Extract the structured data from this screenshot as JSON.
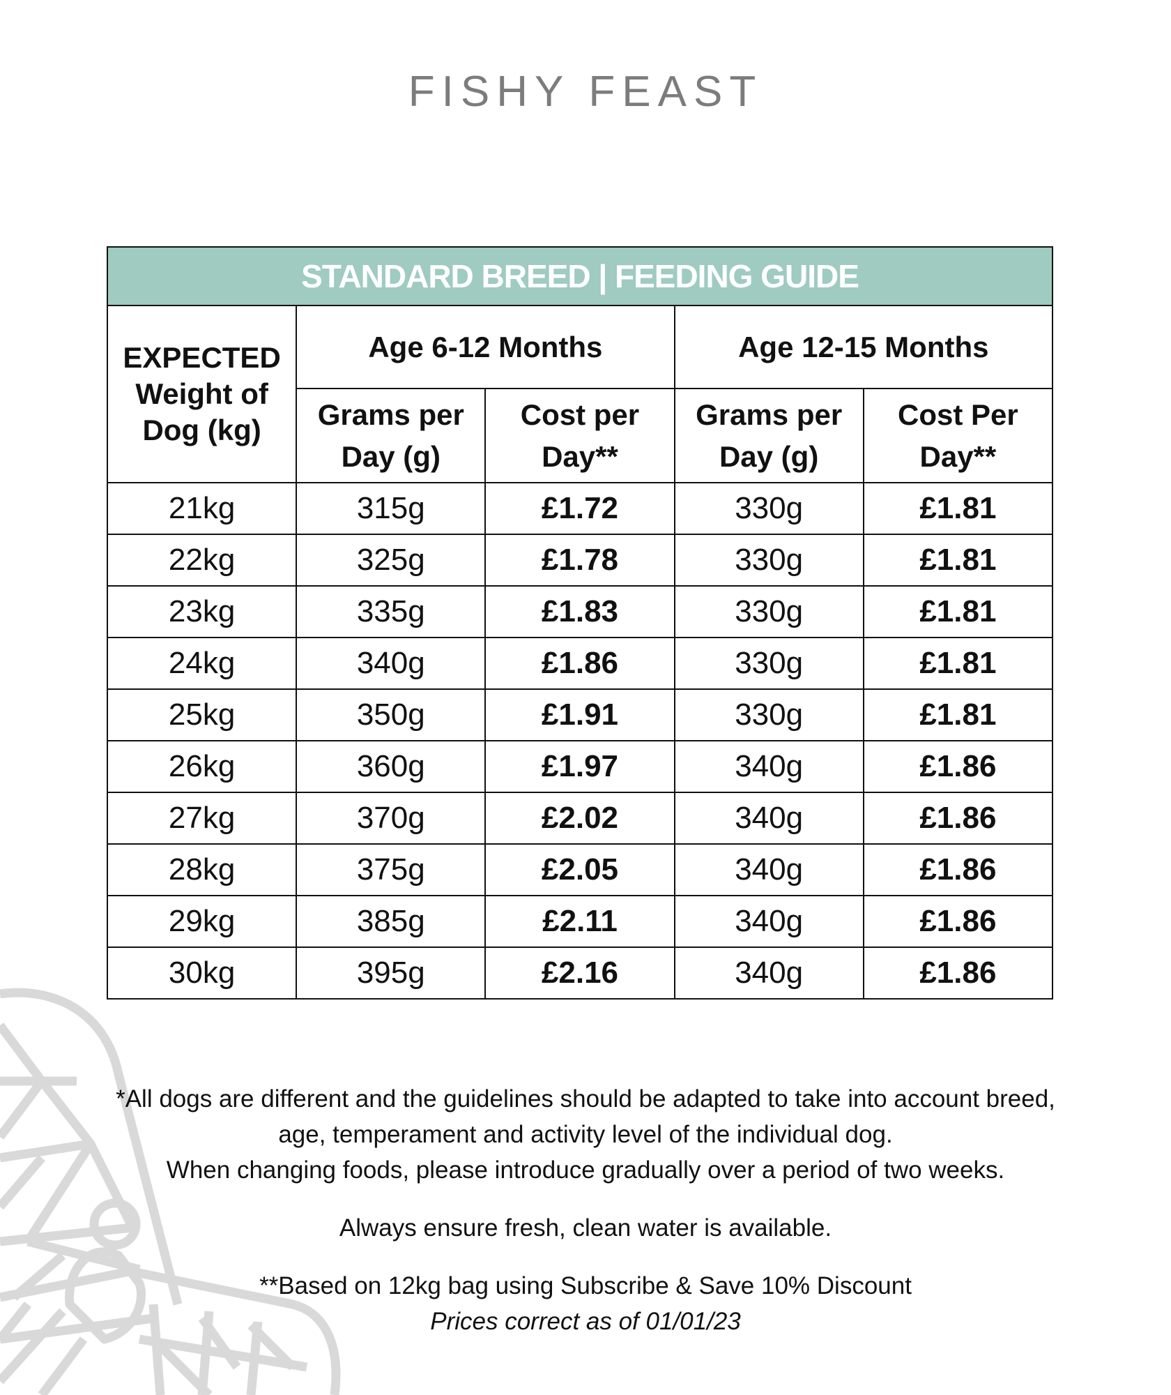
{
  "brand": "FISHY FEAST",
  "table": {
    "banner": "STANDARD BREED | FEEDING GUIDE",
    "weight_header": [
      "EXPECTED",
      "Weight of",
      "Dog (kg)"
    ],
    "groups": [
      "Age 6-12 Months",
      "Age 12-15 Months"
    ],
    "subheaders": [
      [
        "Grams per",
        "Day (g)"
      ],
      [
        "Cost per",
        "Day**"
      ],
      [
        "Grams per",
        "Day (g)"
      ],
      [
        "Cost Per",
        "Day**"
      ]
    ],
    "rows": [
      [
        "21kg",
        "315g",
        "£1.72",
        "330g",
        "£1.81"
      ],
      [
        "22kg",
        "325g",
        "£1.78",
        "330g",
        "£1.81"
      ],
      [
        "23kg",
        "335g",
        "£1.83",
        "330g",
        "£1.81"
      ],
      [
        "24kg",
        "340g",
        "£1.86",
        "330g",
        "£1.81"
      ],
      [
        "25kg",
        "350g",
        "£1.91",
        "330g",
        "£1.81"
      ],
      [
        "26kg",
        "360g",
        "£1.97",
        "340g",
        "£1.86"
      ],
      [
        "27kg",
        "370g",
        "£2.02",
        "340g",
        "£1.86"
      ],
      [
        "28kg",
        "375g",
        "£2.05",
        "340g",
        "£1.86"
      ],
      [
        "29kg",
        "385g",
        "£2.11",
        "340g",
        "£1.86"
      ],
      [
        "30kg",
        "395g",
        "£2.16",
        "340g",
        "£1.86"
      ]
    ]
  },
  "notes": {
    "line1": "*All dogs are different and the guidelines should be adapted to take into account breed,",
    "line2": "age, temperament and activity level of the individual dog.",
    "line3": "When changing foods, please introduce gradually over a period of two weeks.",
    "line4": "Always ensure fresh, clean water is available.",
    "line5": "**Based on 12kg bag using Subscribe & Save 10% Discount",
    "line6": "Prices correct as of 01/01/23"
  },
  "colors": {
    "banner": "#9fcbc1",
    "title": "#7c7c7c",
    "decoration": "#d9d9d9"
  },
  "decoration_icon": "dragonfly-outline-icon"
}
